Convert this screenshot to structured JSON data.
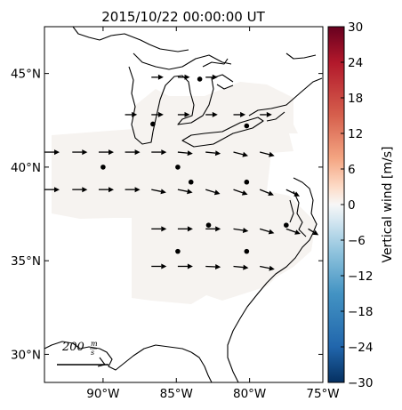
{
  "chart_data": {
    "type": "quiver-map",
    "title": "2015/10/22 00:00:00 UT",
    "x_axis": {
      "range": [
        -94,
        -75
      ],
      "ticks": [
        {
          "value": -90,
          "label": "90°W"
        },
        {
          "value": -85,
          "label": "85°W"
        },
        {
          "value": -80,
          "label": "80°W"
        },
        {
          "value": -75,
          "label": "75°W"
        }
      ]
    },
    "y_axis": {
      "range": [
        28.5,
        47.5
      ],
      "ticks": [
        {
          "value": 30,
          "label": "30°N"
        },
        {
          "value": 35,
          "label": "35°N"
        },
        {
          "value": 40,
          "label": "40°N"
        },
        {
          "value": 45,
          "label": "45°N"
        }
      ]
    },
    "colorbar": {
      "label": "Vertical wind [m/s]",
      "range": [
        -30,
        30
      ],
      "colormap": "RdBu_r",
      "ticks": [
        {
          "value": 30,
          "label": "30"
        },
        {
          "value": 24,
          "label": "24"
        },
        {
          "value": 18,
          "label": "18"
        },
        {
          "value": 12,
          "label": "12"
        },
        {
          "value": 6,
          "label": "6"
        },
        {
          "value": 0,
          "label": "0"
        },
        {
          "value": -6,
          "label": "−6"
        },
        {
          "value": -12,
          "label": "−12"
        },
        {
          "value": -18,
          "label": "−18"
        },
        {
          "value": -24,
          "label": "−24"
        },
        {
          "value": -30,
          "label": "−30"
        }
      ]
    },
    "scale_key": {
      "magnitude": 200,
      "label": "200",
      "unit_top": "m",
      "unit_bottom": "s"
    },
    "stations": [
      {
        "lon": -83.4,
        "lat": 44.7
      },
      {
        "lon": -86.6,
        "lat": 42.3
      },
      {
        "lon": -80.2,
        "lat": 42.2
      },
      {
        "lon": -90.0,
        "lat": 40.0
      },
      {
        "lon": -84.9,
        "lat": 40.0
      },
      {
        "lon": -84.0,
        "lat": 39.2
      },
      {
        "lon": -80.2,
        "lat": 39.2
      },
      {
        "lon": -82.8,
        "lat": 36.9
      },
      {
        "lon": -77.5,
        "lat": 36.9
      },
      {
        "lon": -84.9,
        "lat": 35.5
      },
      {
        "lon": -80.2,
        "lat": 35.5
      }
    ],
    "wind_vectors": [
      {
        "lon": -86.7,
        "lat": 44.8,
        "u": 1.0,
        "v": 0.0,
        "len": 0.8
      },
      {
        "lon": -84.9,
        "lat": 44.8,
        "u": 1.0,
        "v": 0.0,
        "len": 0.8
      },
      {
        "lon": -83.0,
        "lat": 44.8,
        "u": 1.0,
        "v": 0.0,
        "len": 0.8
      },
      {
        "lon": -88.5,
        "lat": 42.8,
        "u": 1.0,
        "v": 0.0,
        "len": 0.8
      },
      {
        "lon": -86.7,
        "lat": 42.8,
        "u": 1.0,
        "v": 0.0,
        "len": 0.8
      },
      {
        "lon": -84.9,
        "lat": 42.8,
        "u": 1.0,
        "v": 0.0,
        "len": 0.8
      },
      {
        "lon": -83.0,
        "lat": 42.8,
        "u": 1.0,
        "v": 0.0,
        "len": 0.8
      },
      {
        "lon": -81.1,
        "lat": 42.8,
        "u": 1.0,
        "v": 0.0,
        "len": 0.8
      },
      {
        "lon": -79.3,
        "lat": 42.8,
        "u": 1.0,
        "v": 0.0,
        "len": 0.8
      },
      {
        "lon": -94.0,
        "lat": 40.8,
        "u": 1.0,
        "v": 0.0,
        "len": 1.0
      },
      {
        "lon": -92.1,
        "lat": 40.8,
        "u": 1.0,
        "v": 0.0,
        "len": 1.0
      },
      {
        "lon": -90.3,
        "lat": 40.8,
        "u": 1.0,
        "v": 0.0,
        "len": 1.0
      },
      {
        "lon": -88.5,
        "lat": 40.8,
        "u": 1.0,
        "v": 0.0,
        "len": 1.0
      },
      {
        "lon": -86.7,
        "lat": 40.8,
        "u": 1.0,
        "v": 0.0,
        "len": 1.0
      },
      {
        "lon": -84.9,
        "lat": 40.8,
        "u": 1.0,
        "v": -0.1,
        "len": 1.0
      },
      {
        "lon": -83.0,
        "lat": 40.8,
        "u": 1.0,
        "v": -0.1,
        "len": 1.0
      },
      {
        "lon": -81.1,
        "lat": 40.8,
        "u": 1.0,
        "v": -0.25,
        "len": 1.0
      },
      {
        "lon": -79.3,
        "lat": 40.8,
        "u": 1.0,
        "v": -0.25,
        "len": 1.0
      },
      {
        "lon": -94.0,
        "lat": 38.8,
        "u": 1.0,
        "v": 0.0,
        "len": 1.0
      },
      {
        "lon": -92.1,
        "lat": 38.8,
        "u": 1.0,
        "v": 0.0,
        "len": 1.0
      },
      {
        "lon": -90.3,
        "lat": 38.8,
        "u": 1.0,
        "v": 0.0,
        "len": 1.0
      },
      {
        "lon": -88.5,
        "lat": 38.8,
        "u": 1.0,
        "v": 0.0,
        "len": 1.0
      },
      {
        "lon": -86.7,
        "lat": 38.8,
        "u": 1.0,
        "v": -0.2,
        "len": 1.0
      },
      {
        "lon": -84.9,
        "lat": 38.8,
        "u": 1.0,
        "v": -0.2,
        "len": 1.0
      },
      {
        "lon": -83.0,
        "lat": 38.8,
        "u": 1.0,
        "v": -0.3,
        "len": 1.0
      },
      {
        "lon": -81.1,
        "lat": 38.8,
        "u": 1.0,
        "v": -0.35,
        "len": 1.0
      },
      {
        "lon": -79.3,
        "lat": 38.8,
        "u": 1.0,
        "v": -0.4,
        "len": 1.0
      },
      {
        "lon": -77.5,
        "lat": 38.8,
        "u": 1.0,
        "v": -0.5,
        "len": 1.0
      },
      {
        "lon": -86.7,
        "lat": 36.7,
        "u": 1.0,
        "v": 0.0,
        "len": 1.0
      },
      {
        "lon": -84.9,
        "lat": 36.7,
        "u": 1.0,
        "v": 0.0,
        "len": 1.0
      },
      {
        "lon": -83.0,
        "lat": 36.7,
        "u": 1.0,
        "v": 0.0,
        "len": 1.0
      },
      {
        "lon": -81.1,
        "lat": 36.7,
        "u": 1.0,
        "v": -0.15,
        "len": 1.0
      },
      {
        "lon": -79.3,
        "lat": 36.7,
        "u": 1.0,
        "v": -0.3,
        "len": 1.0
      },
      {
        "lon": -77.5,
        "lat": 36.7,
        "u": 1.0,
        "v": -0.35,
        "len": 1.0
      },
      {
        "lon": -76.0,
        "lat": 36.7,
        "u": 1.0,
        "v": -0.6,
        "len": 0.8
      },
      {
        "lon": -86.7,
        "lat": 34.7,
        "u": 1.0,
        "v": 0.0,
        "len": 1.0
      },
      {
        "lon": -84.9,
        "lat": 34.7,
        "u": 1.0,
        "v": 0.0,
        "len": 1.0
      },
      {
        "lon": -83.0,
        "lat": 34.7,
        "u": 1.0,
        "v": -0.05,
        "len": 1.0
      },
      {
        "lon": -81.1,
        "lat": 34.7,
        "u": 1.0,
        "v": -0.1,
        "len": 1.0
      },
      {
        "lon": -79.3,
        "lat": 34.7,
        "u": 1.0,
        "v": -0.2,
        "len": 1.0
      }
    ],
    "colors": {
      "field_shading": "#f6f3f0",
      "coastline": "#000000"
    }
  }
}
